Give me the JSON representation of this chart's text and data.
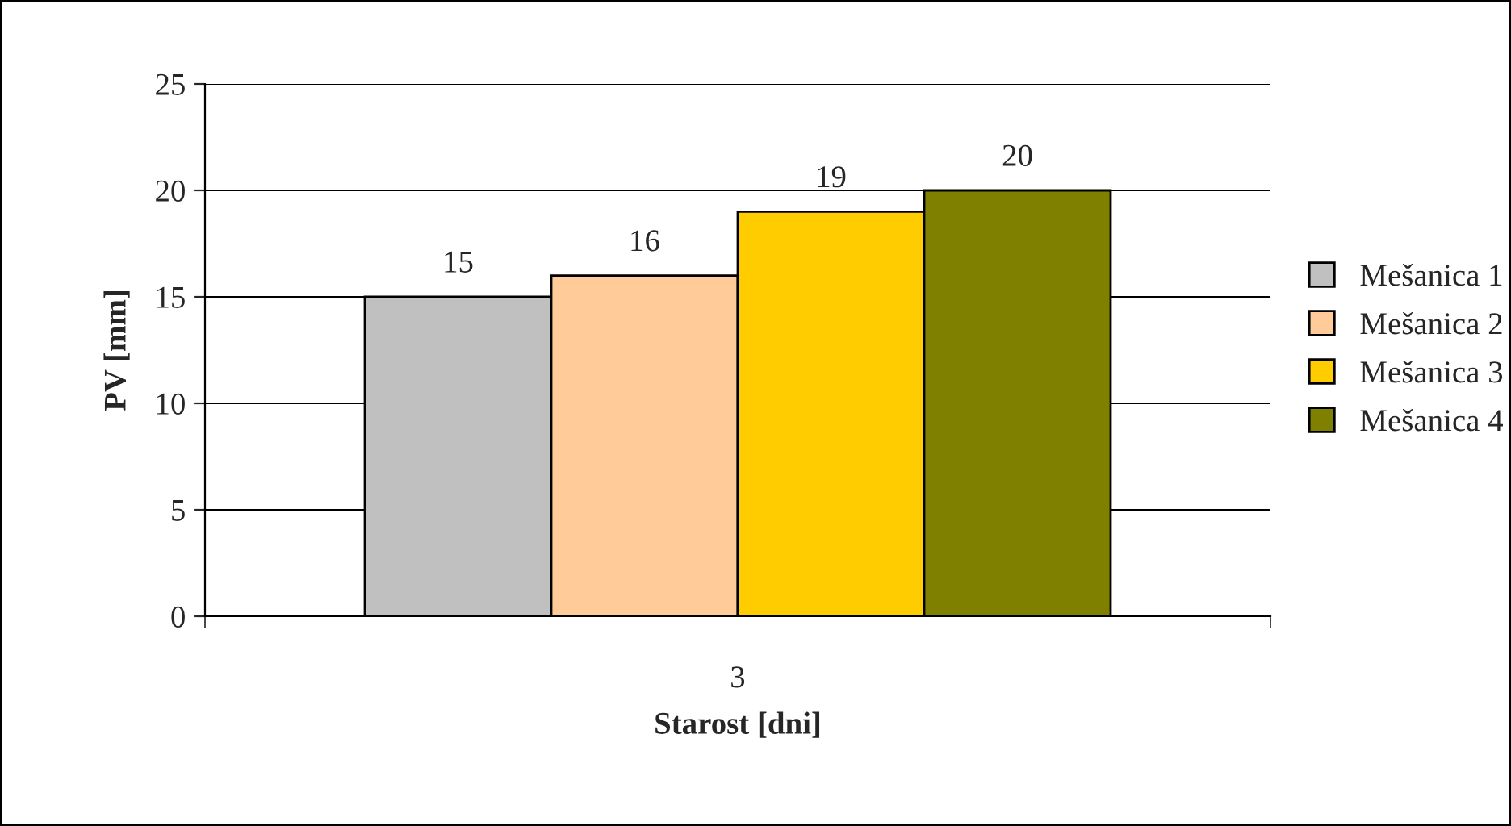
{
  "chart_data": {
    "type": "bar",
    "xlabel": "Starost [dni]",
    "ylabel": "PV [mm]",
    "categories": [
      "3"
    ],
    "series": [
      {
        "name": "Mešanica 1",
        "color": "#c0c0c0",
        "values": [
          15
        ]
      },
      {
        "name": "Mešanica 2",
        "color": "#ffcc99",
        "values": [
          16
        ]
      },
      {
        "name": "Mešanica 3",
        "color": "#ffcc00",
        "values": [
          19
        ]
      },
      {
        "name": "Mešanica 4",
        "color": "#808000",
        "values": [
          20
        ]
      }
    ],
    "ylim": [
      0,
      25
    ],
    "yticks": [
      0,
      5,
      10,
      15,
      20,
      25
    ],
    "grid": "y",
    "legend": "right",
    "data_labels": true
  }
}
